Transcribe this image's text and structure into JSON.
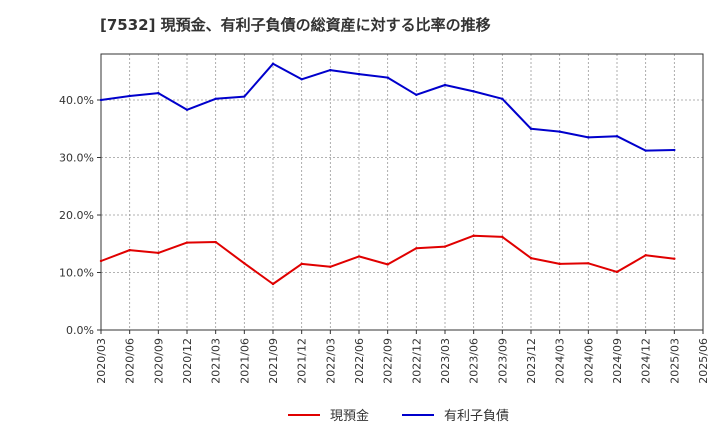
{
  "chart_data": {
    "type": "line",
    "title": "[7532]  現預金、有利子負債の総資産に対する比率の推移",
    "xlabel": "",
    "ylabel": "",
    "ylim": [
      0,
      48
    ],
    "yticks": [
      0,
      10,
      20,
      30,
      40
    ],
    "ytick_labels": [
      "0.0%",
      "10.0%",
      "20.0%",
      "30.0%",
      "40.0%"
    ],
    "grid": true,
    "legend_position": "bottom-center",
    "categories": [
      "2020/03",
      "2020/06",
      "2020/09",
      "2020/12",
      "2021/03",
      "2021/06",
      "2021/09",
      "2021/12",
      "2022/03",
      "2022/06",
      "2022/09",
      "2022/12",
      "2023/03",
      "2023/06",
      "2023/09",
      "2023/12",
      "2024/03",
      "2024/06",
      "2024/09",
      "2024/12",
      "2025/03",
      "2025/06"
    ],
    "series": [
      {
        "name": "現預金",
        "color": "#e00000",
        "values": [
          12.0,
          13.9,
          13.4,
          15.2,
          15.3,
          11.6,
          8.0,
          11.5,
          11.0,
          12.8,
          11.4,
          14.2,
          14.5,
          16.4,
          16.2,
          12.5,
          11.5,
          11.6,
          10.1,
          13.0,
          12.4,
          null
        ]
      },
      {
        "name": "有利子負債",
        "color": "#0000cc",
        "values": [
          40.0,
          40.7,
          41.2,
          38.3,
          40.2,
          40.6,
          46.3,
          43.6,
          45.2,
          44.5,
          43.9,
          40.9,
          42.6,
          41.5,
          40.2,
          35.0,
          34.5,
          33.5,
          33.7,
          31.2,
          31.3,
          null
        ]
      }
    ]
  }
}
